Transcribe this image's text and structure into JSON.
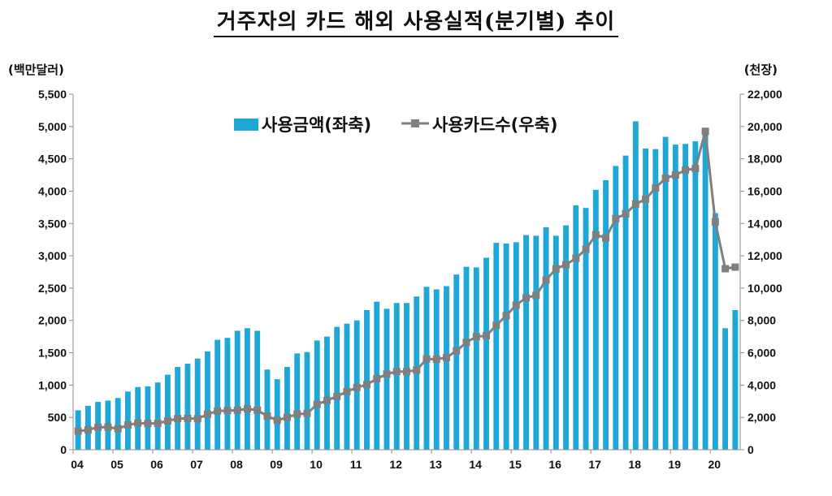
{
  "title": "거주자의 카드 해외 사용실적(분기별) 추이",
  "chart_data": {
    "type": "bar+line",
    "left_unit": "(백만달러)",
    "right_unit": "(천장)",
    "left_ylim": [
      0,
      5500
    ],
    "right_ylim": [
      0,
      22000
    ],
    "left_ticks": [
      "0",
      "500",
      "1,000",
      "1,500",
      "2,000",
      "2,500",
      "3,000",
      "3,500",
      "4,000",
      "4,500",
      "5,000",
      "5,500"
    ],
    "right_ticks": [
      "0",
      "2,000",
      "4,000",
      "6,000",
      "8,000",
      "10,000",
      "12,000",
      "14,000",
      "16,000",
      "18,000",
      "20,000",
      "22,000"
    ],
    "x_labels": [
      "04",
      "05",
      "06",
      "07",
      "08",
      "09",
      "10",
      "11",
      "12",
      "13",
      "14",
      "15",
      "16",
      "17",
      "18",
      "19",
      "20"
    ],
    "grid": false,
    "legend_position": "top-center",
    "colors": {
      "bars": "#1fa7d8",
      "line": "#7f7f7f"
    },
    "series": [
      {
        "name": "사용금액(좌축)",
        "type": "bar",
        "axis": "left",
        "values": [
          610,
          680,
          740,
          760,
          800,
          900,
          970,
          980,
          1040,
          1160,
          1280,
          1330,
          1410,
          1520,
          1700,
          1730,
          1840,
          1880,
          1840,
          1240,
          1090,
          1280,
          1490,
          1510,
          1690,
          1750,
          1900,
          1950,
          2000,
          2160,
          2290,
          2180,
          2270,
          2270,
          2370,
          2520,
          2480,
          2530,
          2710,
          2830,
          2820,
          2970,
          3200,
          3190,
          3210,
          3320,
          3310,
          3440,
          3310,
          3470,
          3780,
          3740,
          4020,
          4170,
          4390,
          4550,
          5080,
          4660,
          4650,
          4840,
          4720,
          4730,
          4770,
          4950,
          3660,
          1880,
          2160
        ]
      },
      {
        "name": "사용카드수(우축)",
        "type": "line",
        "axis": "right",
        "values": [
          1150,
          1230,
          1390,
          1400,
          1300,
          1530,
          1650,
          1620,
          1640,
          1780,
          1930,
          1940,
          1920,
          2190,
          2400,
          2420,
          2440,
          2530,
          2450,
          2080,
          1820,
          2000,
          2200,
          2250,
          2800,
          3050,
          3300,
          3600,
          3850,
          4030,
          4390,
          4680,
          4840,
          4830,
          4930,
          5620,
          5600,
          5700,
          6120,
          6640,
          7000,
          7050,
          7700,
          8300,
          8950,
          9400,
          9550,
          10500,
          11200,
          11450,
          11850,
          12400,
          13300,
          13100,
          14300,
          14600,
          15200,
          15500,
          16200,
          16800,
          17000,
          17300,
          17400,
          19700,
          14100,
          11200,
          11300
        ]
      }
    ]
  }
}
